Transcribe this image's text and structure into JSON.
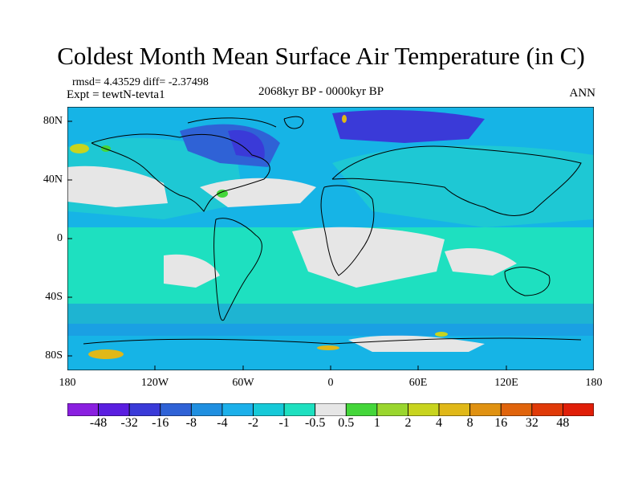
{
  "title": "Coldest Month Mean Surface Air Temperature (in C)",
  "stats": "rmsd= 4.43529 diff= -2.37498",
  "experiment": "Expt = tewtN-tevta1",
  "subtitle": "2068kyr BP - 0000kyr BP",
  "season": "ANN",
  "axes": {
    "y_labels": [
      "80N",
      "40N",
      "0",
      "40S",
      "80S"
    ],
    "x_labels": [
      "180",
      "120W",
      "60W",
      "0",
      "60E",
      "120E",
      "180"
    ]
  },
  "colorbar": {
    "labels": [
      "-48",
      "-32",
      "-16",
      "-8",
      "-4",
      "-2",
      "-1",
      "-0.5",
      "0.5",
      "1",
      "2",
      "4",
      "8",
      "16",
      "32",
      "48"
    ],
    "colors": [
      "#8a1fe0",
      "#5a1ee0",
      "#3a3ad8",
      "#2f62d6",
      "#1f8fe0",
      "#1cb0ea",
      "#16c9d8",
      "#1ee0c0",
      "#e6e6e6",
      "#44d63a",
      "#9ad62e",
      "#c8d41e",
      "#e0b818",
      "#e09212",
      "#e0640c",
      "#e03a08",
      "#e01e08"
    ]
  },
  "palette": {
    "ocean_base": "#1ec8d4",
    "band_teal": "#1ee0c0",
    "light_blue": "#16b4e6",
    "mid_blue": "#1f8fe0",
    "dark_blue": "#3a3ad8",
    "neutral": "#e6e6e6",
    "green": "#44d63a",
    "yellow": "#c8d41e"
  }
}
